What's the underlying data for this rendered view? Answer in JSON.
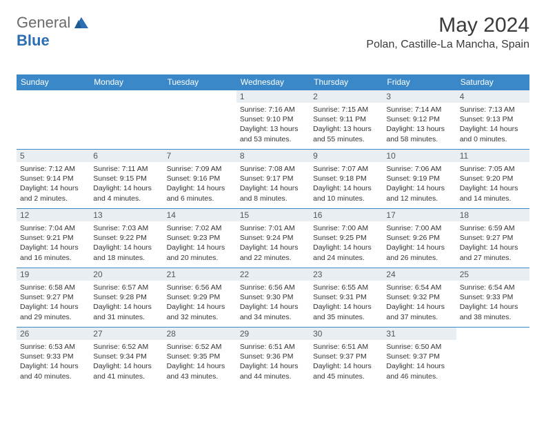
{
  "logo": {
    "general": "General",
    "blue": "Blue"
  },
  "header": {
    "title": "May 2024",
    "location": "Polan, Castille-La Mancha, Spain"
  },
  "calendar": {
    "header_bg": "#3b88c8",
    "header_fg": "#ffffff",
    "daynum_bg": "#e9eef3",
    "border_color": "#3b88c8",
    "days_of_week": [
      "Sunday",
      "Monday",
      "Tuesday",
      "Wednesday",
      "Thursday",
      "Friday",
      "Saturday"
    ],
    "weeks": [
      [
        null,
        null,
        null,
        {
          "n": "1",
          "sr": "7:16 AM",
          "ss": "9:10 PM",
          "dl": "13 hours and 53 minutes."
        },
        {
          "n": "2",
          "sr": "7:15 AM",
          "ss": "9:11 PM",
          "dl": "13 hours and 55 minutes."
        },
        {
          "n": "3",
          "sr": "7:14 AM",
          "ss": "9:12 PM",
          "dl": "13 hours and 58 minutes."
        },
        {
          "n": "4",
          "sr": "7:13 AM",
          "ss": "9:13 PM",
          "dl": "14 hours and 0 minutes."
        }
      ],
      [
        {
          "n": "5",
          "sr": "7:12 AM",
          "ss": "9:14 PM",
          "dl": "14 hours and 2 minutes."
        },
        {
          "n": "6",
          "sr": "7:11 AM",
          "ss": "9:15 PM",
          "dl": "14 hours and 4 minutes."
        },
        {
          "n": "7",
          "sr": "7:09 AM",
          "ss": "9:16 PM",
          "dl": "14 hours and 6 minutes."
        },
        {
          "n": "8",
          "sr": "7:08 AM",
          "ss": "9:17 PM",
          "dl": "14 hours and 8 minutes."
        },
        {
          "n": "9",
          "sr": "7:07 AM",
          "ss": "9:18 PM",
          "dl": "14 hours and 10 minutes."
        },
        {
          "n": "10",
          "sr": "7:06 AM",
          "ss": "9:19 PM",
          "dl": "14 hours and 12 minutes."
        },
        {
          "n": "11",
          "sr": "7:05 AM",
          "ss": "9:20 PM",
          "dl": "14 hours and 14 minutes."
        }
      ],
      [
        {
          "n": "12",
          "sr": "7:04 AM",
          "ss": "9:21 PM",
          "dl": "14 hours and 16 minutes."
        },
        {
          "n": "13",
          "sr": "7:03 AM",
          "ss": "9:22 PM",
          "dl": "14 hours and 18 minutes."
        },
        {
          "n": "14",
          "sr": "7:02 AM",
          "ss": "9:23 PM",
          "dl": "14 hours and 20 minutes."
        },
        {
          "n": "15",
          "sr": "7:01 AM",
          "ss": "9:24 PM",
          "dl": "14 hours and 22 minutes."
        },
        {
          "n": "16",
          "sr": "7:00 AM",
          "ss": "9:25 PM",
          "dl": "14 hours and 24 minutes."
        },
        {
          "n": "17",
          "sr": "7:00 AM",
          "ss": "9:26 PM",
          "dl": "14 hours and 26 minutes."
        },
        {
          "n": "18",
          "sr": "6:59 AM",
          "ss": "9:27 PM",
          "dl": "14 hours and 27 minutes."
        }
      ],
      [
        {
          "n": "19",
          "sr": "6:58 AM",
          "ss": "9:27 PM",
          "dl": "14 hours and 29 minutes."
        },
        {
          "n": "20",
          "sr": "6:57 AM",
          "ss": "9:28 PM",
          "dl": "14 hours and 31 minutes."
        },
        {
          "n": "21",
          "sr": "6:56 AM",
          "ss": "9:29 PM",
          "dl": "14 hours and 32 minutes."
        },
        {
          "n": "22",
          "sr": "6:56 AM",
          "ss": "9:30 PM",
          "dl": "14 hours and 34 minutes."
        },
        {
          "n": "23",
          "sr": "6:55 AM",
          "ss": "9:31 PM",
          "dl": "14 hours and 35 minutes."
        },
        {
          "n": "24",
          "sr": "6:54 AM",
          "ss": "9:32 PM",
          "dl": "14 hours and 37 minutes."
        },
        {
          "n": "25",
          "sr": "6:54 AM",
          "ss": "9:33 PM",
          "dl": "14 hours and 38 minutes."
        }
      ],
      [
        {
          "n": "26",
          "sr": "6:53 AM",
          "ss": "9:33 PM",
          "dl": "14 hours and 40 minutes."
        },
        {
          "n": "27",
          "sr": "6:52 AM",
          "ss": "9:34 PM",
          "dl": "14 hours and 41 minutes."
        },
        {
          "n": "28",
          "sr": "6:52 AM",
          "ss": "9:35 PM",
          "dl": "14 hours and 43 minutes."
        },
        {
          "n": "29",
          "sr": "6:51 AM",
          "ss": "9:36 PM",
          "dl": "14 hours and 44 minutes."
        },
        {
          "n": "30",
          "sr": "6:51 AM",
          "ss": "9:37 PM",
          "dl": "14 hours and 45 minutes."
        },
        {
          "n": "31",
          "sr": "6:50 AM",
          "ss": "9:37 PM",
          "dl": "14 hours and 46 minutes."
        },
        null
      ]
    ]
  }
}
